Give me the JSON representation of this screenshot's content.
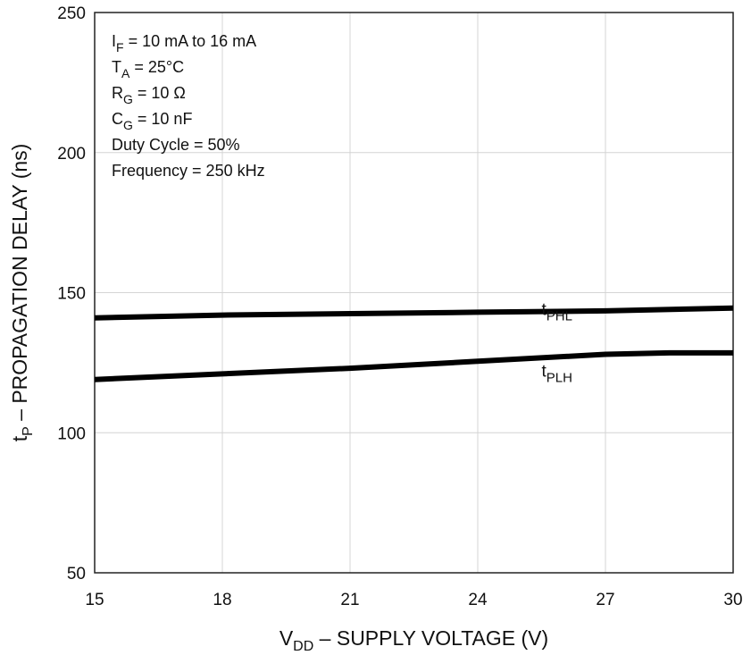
{
  "chart_data": {
    "type": "line",
    "xlabel": {
      "main": "V",
      "sub": "DD",
      "rest": " – SUPPLY VOLTAGE (V)"
    },
    "ylabel": {
      "main": "t",
      "sub": "P",
      "rest": " – PROPAGATION DELAY (ns)"
    },
    "xlim": [
      15,
      30
    ],
    "ylim": [
      50,
      250
    ],
    "xticks": [
      15,
      18,
      21,
      24,
      27,
      30
    ],
    "yticks": [
      50,
      100,
      150,
      200,
      250
    ],
    "grid": true,
    "conditions": [
      {
        "main": "I",
        "sub": "F",
        "rest": " = 10 mA to 16 mA"
      },
      {
        "main": "T",
        "sub": "A",
        "rest": " = 25°C"
      },
      {
        "main": "R",
        "sub": "G",
        "rest": " = 10 Ω"
      },
      {
        "main": "C",
        "sub": "G",
        "rest": " = 10 nF"
      },
      {
        "main": "Duty Cycle = 50%",
        "sub": "",
        "rest": ""
      },
      {
        "main": "Frequency = 250 kHz",
        "sub": "",
        "rest": ""
      }
    ],
    "series": [
      {
        "name": "tPHL",
        "label": {
          "main": "t",
          "sub": "PHL"
        },
        "label_at": [
          25.5,
          142
        ],
        "x": [
          15,
          18,
          21,
          24,
          27,
          30
        ],
        "y": [
          141,
          142,
          142.5,
          143,
          143.5,
          144.5
        ]
      },
      {
        "name": "tPLH",
        "label": {
          "main": "t",
          "sub": "PLH"
        },
        "label_at": [
          25.5,
          120
        ],
        "x": [
          15,
          18,
          21,
          24,
          27,
          28.5,
          30
        ],
        "y": [
          119,
          121,
          123,
          125.5,
          128,
          128.5,
          128.5
        ]
      }
    ]
  }
}
